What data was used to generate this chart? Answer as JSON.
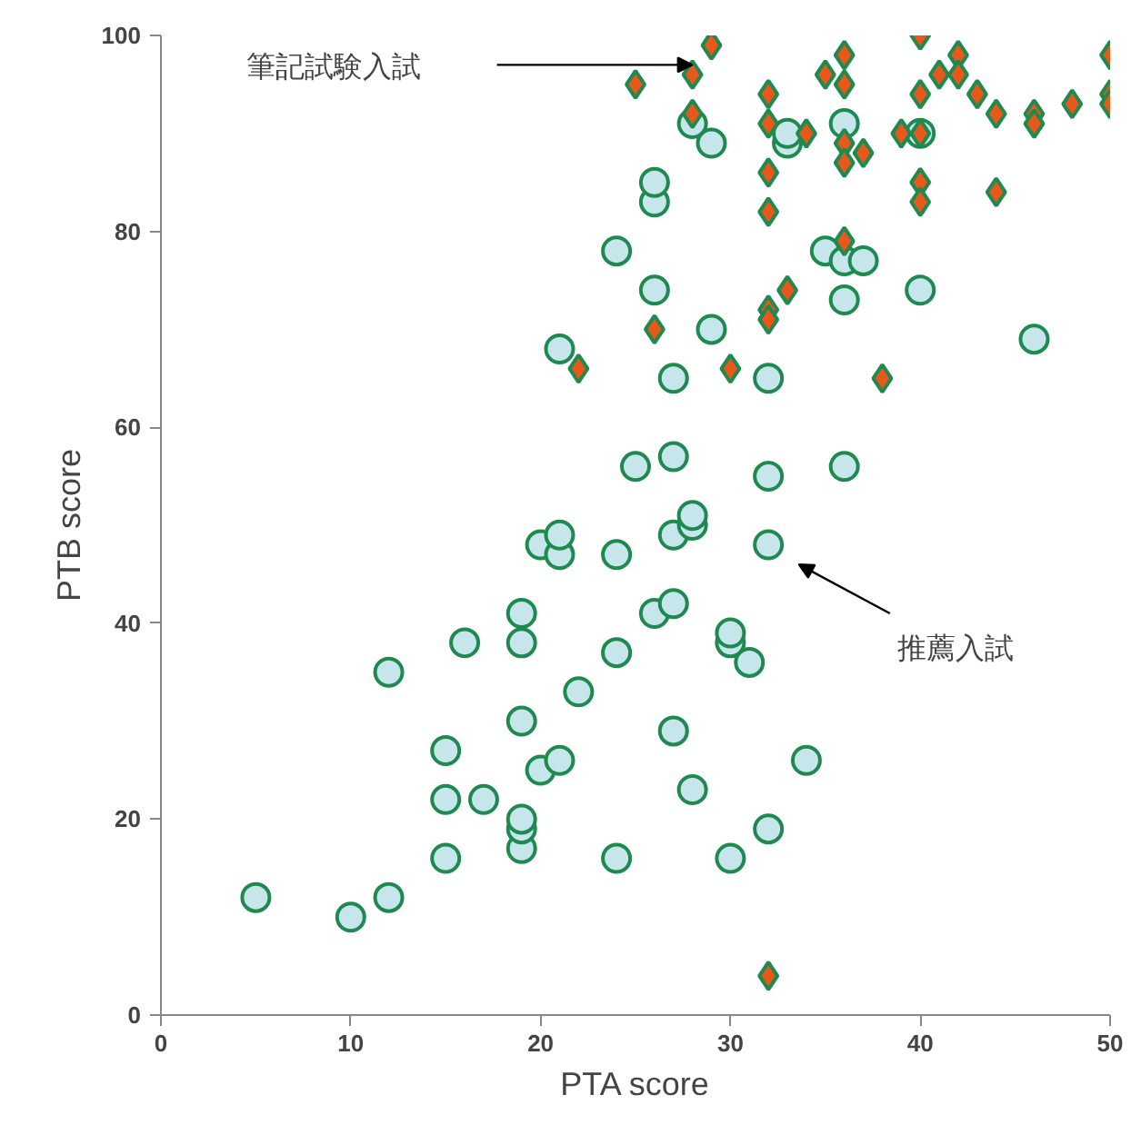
{
  "chart_data": {
    "type": "scatter",
    "xlabel": "PTA score",
    "ylabel": "PTB score",
    "xlim": [
      0,
      50
    ],
    "xticks": [
      0,
      10,
      20,
      30,
      40,
      50
    ],
    "ylim": [
      0,
      100
    ],
    "yticks": [
      0,
      20,
      40,
      60,
      80,
      100
    ],
    "grid": false,
    "series": [
      {
        "color": "#c6e6ec",
        "marker": "circle",
        "x": [
          5,
          10,
          12,
          12,
          15,
          15,
          15,
          16,
          17,
          19,
          19,
          19,
          19,
          19,
          19,
          20,
          20,
          21,
          21,
          21,
          22,
          24,
          24,
          24,
          25,
          26,
          27,
          27,
          27,
          27,
          28,
          28,
          28,
          30,
          30,
          30,
          31,
          32,
          32,
          32,
          32,
          34,
          36,
          21,
          24,
          26,
          26,
          26,
          27,
          28,
          29,
          29,
          33,
          33,
          35,
          36,
          36,
          36,
          37,
          40,
          40,
          46
        ],
        "values": [
          12,
          10,
          12,
          35,
          16,
          22,
          27,
          38,
          22,
          17,
          19,
          20,
          30,
          38,
          41,
          25,
          48,
          26,
          47,
          49,
          33,
          16,
          37,
          47,
          56,
          41,
          42,
          29,
          49,
          57,
          50,
          51,
          23,
          16,
          38,
          39,
          36,
          19,
          48,
          55,
          65,
          26,
          56,
          68,
          78,
          74,
          83,
          85,
          65,
          91,
          89,
          70,
          89,
          90,
          78,
          77,
          73,
          91,
          77,
          74,
          90,
          69
        ]
      },
      {
        "color": "#e8581a",
        "marker": "diamond",
        "x": [
          29,
          25,
          28,
          28,
          22,
          26,
          30,
          32,
          32,
          32,
          32,
          32,
          32,
          33,
          34,
          35,
          36,
          36,
          36,
          36,
          36,
          37,
          38,
          39,
          40,
          40,
          40,
          40,
          40,
          41,
          42,
          42,
          43,
          44,
          44,
          46,
          46,
          48,
          50,
          50,
          50,
          32
        ],
        "values": [
          99,
          95,
          96,
          92,
          66,
          70,
          66,
          94,
          91,
          86,
          82,
          72,
          71,
          74,
          90,
          96,
          98,
          95,
          89,
          87,
          79,
          88,
          65,
          90,
          100,
          94,
          90,
          85,
          83,
          96,
          98,
          96,
          94,
          92,
          84,
          92,
          91,
          93,
          98,
          94,
          93,
          4
        ]
      }
    ],
    "annotations": [
      "筆記試験入試",
      "推薦入試"
    ]
  }
}
